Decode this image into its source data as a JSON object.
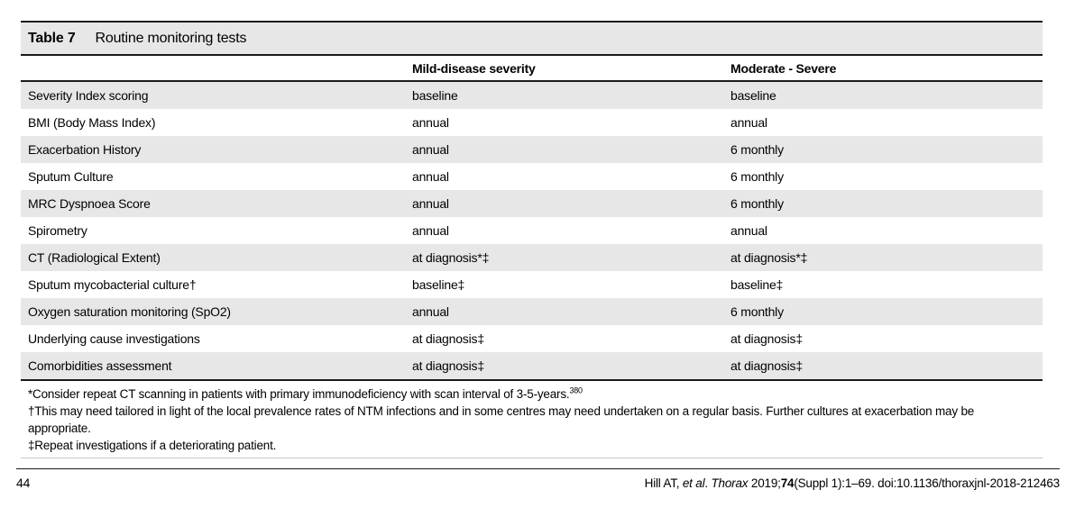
{
  "table": {
    "label": "Table 7",
    "title": "Routine monitoring tests",
    "columns": [
      "",
      "Mild-disease severity",
      "Moderate - Severe"
    ],
    "rows": [
      {
        "test": "Severity Index scoring",
        "mild": "baseline",
        "moderate": "baseline"
      },
      {
        "test": "BMI (Body Mass Index)",
        "mild": "annual",
        "moderate": "annual"
      },
      {
        "test": "Exacerbation History",
        "mild": "annual",
        "moderate": "6 monthly"
      },
      {
        "test": "Sputum Culture",
        "mild": "annual",
        "moderate": "6 monthly"
      },
      {
        "test": "MRC Dyspnoea Score",
        "mild": "annual",
        "moderate": "6 monthly"
      },
      {
        "test": "Spirometry",
        "mild": "annual",
        "moderate": "annual"
      },
      {
        "test": "CT (Radiological Extent)",
        "mild": "at diagnosis*‡",
        "moderate": "at diagnosis*‡"
      },
      {
        "test": "Sputum mycobacterial culture†",
        "mild": "baseline‡",
        "moderate": "baseline‡"
      },
      {
        "test": "Oxygen saturation monitoring (SpO2)",
        "mild": "annual",
        "moderate": "6 monthly"
      },
      {
        "test": "Underlying cause investigations",
        "mild": "at diagnosis‡",
        "moderate": "at diagnosis‡"
      },
      {
        "test": "Comorbidities assessment",
        "mild": "at diagnosis‡",
        "moderate": "at diagnosis‡"
      }
    ],
    "footnotes": [
      {
        "text": "*Consider repeat CT scanning in patients with primary immunodeficiency with scan interval of 3-5-years.",
        "ref": "380"
      },
      {
        "text": "†This may need tailored in light of the local prevalence rates of NTM infections and in some centres may need undertaken on a regular basis. Further cultures at exacerbation may be appropriate."
      },
      {
        "text": "‡Repeat investigations if a deteriorating patient."
      }
    ]
  },
  "footer": {
    "page_number": "44",
    "citation": {
      "authors": "Hill AT, ",
      "et_al": "et al",
      "separator": ". ",
      "journal": "Thorax",
      "after_journal": " 2019;",
      "volume_bold": "74",
      "rest": "(Suppl 1):1–69. doi:10.1136/thoraxjnl-2018-212463"
    }
  },
  "colors": {
    "row_shade": "#e7e7e7",
    "rule_dark": "#1a1a1a",
    "rule_light": "#c9c9c9"
  }
}
